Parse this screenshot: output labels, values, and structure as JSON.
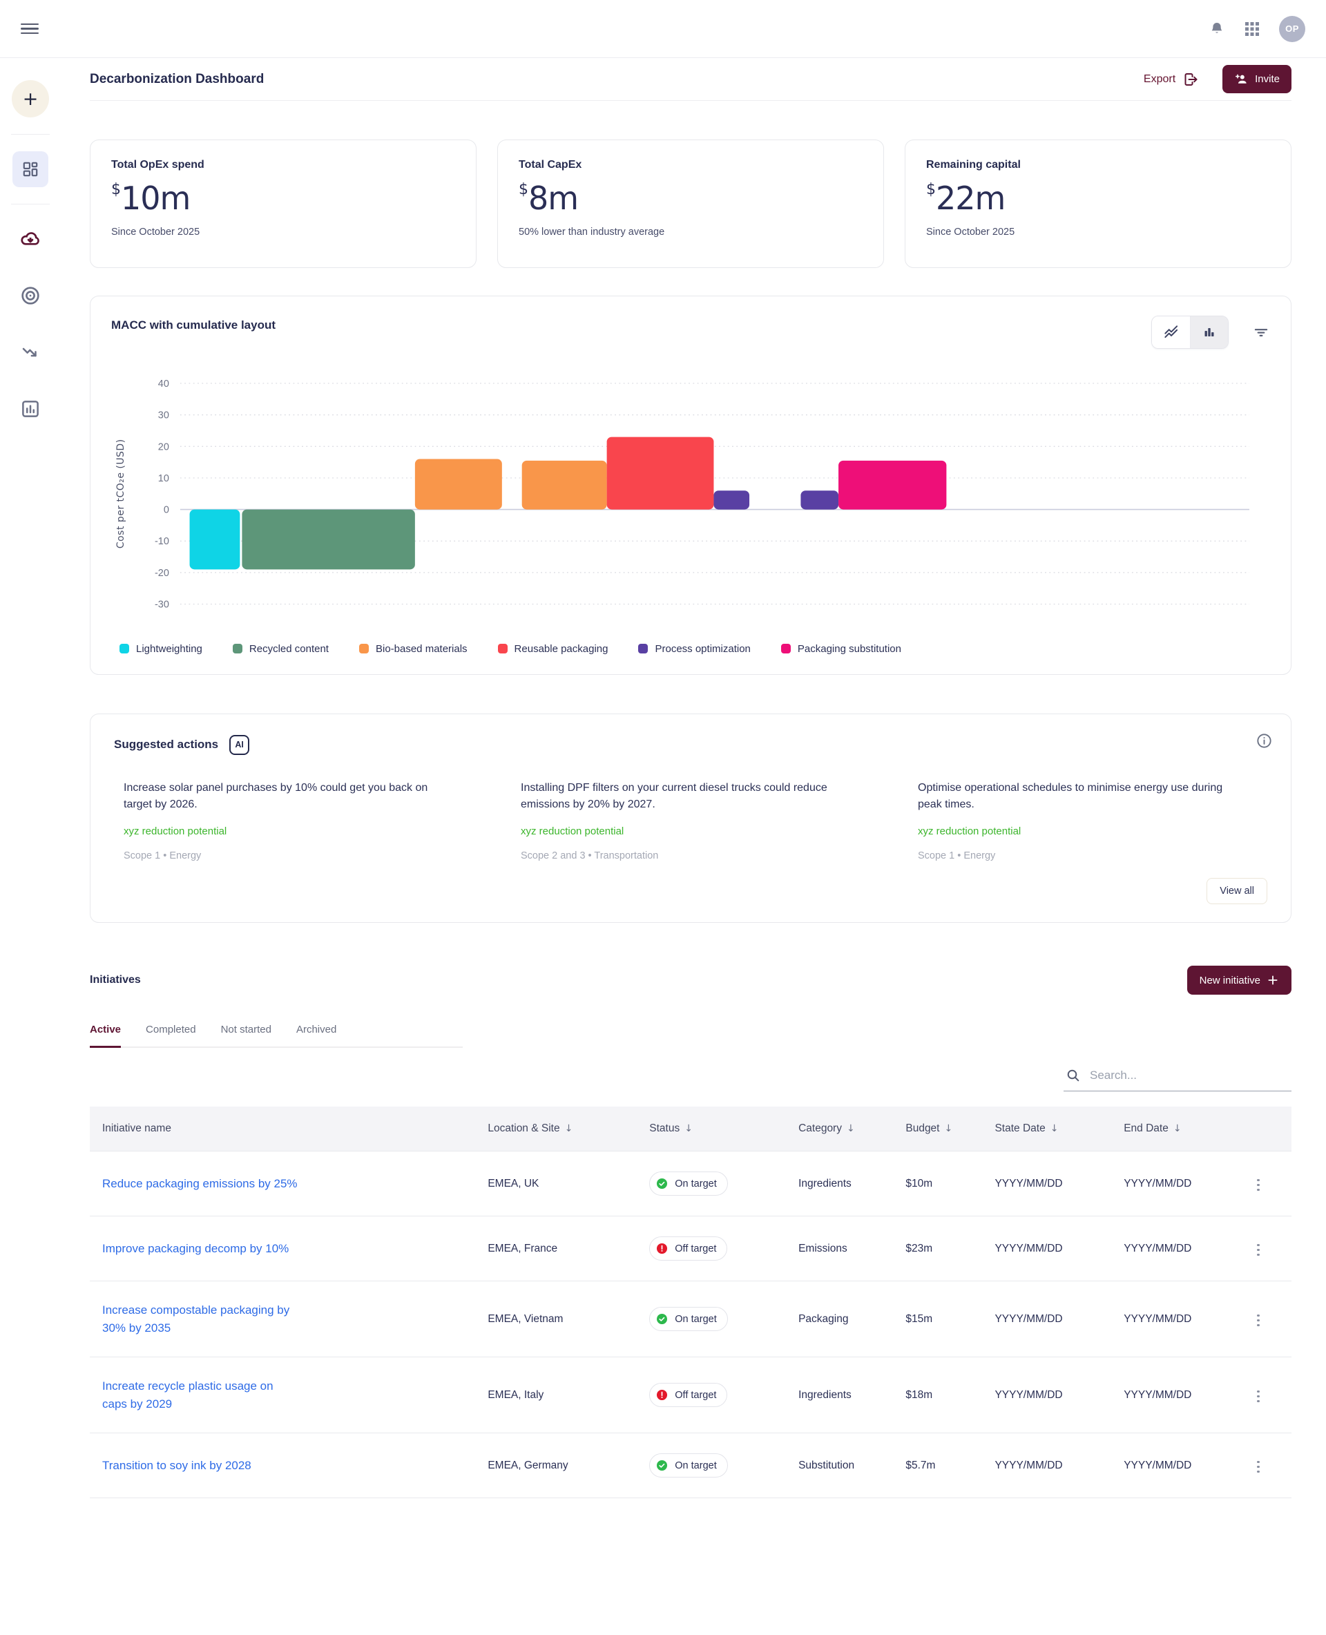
{
  "colors": {
    "brand": "#5e1533",
    "link_blue": "#2e6be6",
    "potential_green": "#3cb52c",
    "status_on": "#2db84c",
    "status_off": "#e3192b",
    "sidebar_selected_bg": "#e9ecfa",
    "table_header_bg": "#f4f4f7"
  },
  "topbar": {
    "icons": [
      "hamburger-menu-icon",
      "bell-icon",
      "app-grid-icon"
    ],
    "avatar_initials": "OP"
  },
  "sidebar": {
    "plus": "+",
    "items": [
      {
        "icon": "dashboard-icon",
        "selected": true
      },
      {
        "icon": "cloud-download-icon",
        "selected": false
      },
      {
        "icon": "target-icon",
        "selected": false
      },
      {
        "icon": "trend-down-icon",
        "selected": false
      },
      {
        "icon": "bar-chart-icon",
        "selected": false
      }
    ]
  },
  "header": {
    "title": "Decarbonization Dashboard",
    "export_label": "Export",
    "invite_label": "Invite"
  },
  "stat_cards": [
    {
      "label": "Total OpEx spend",
      "currency": "$",
      "value": "10m",
      "note": "Since October 2025"
    },
    {
      "label": "Total CapEx",
      "currency": "$",
      "value": "8m",
      "note": "50% lower than industry average"
    },
    {
      "label": "Remaining capital",
      "currency": "$",
      "value": "22m",
      "note": "Since October 2025"
    }
  ],
  "chart_card": {
    "title": "MACC with cumulative layout",
    "toggles": [
      "line-chart-toggle",
      "bar-chart-toggle"
    ],
    "active_toggle": "bar-chart-toggle",
    "chart_data": {
      "type": "bar",
      "variant": "macc-waterfall",
      "title": "MACC with cumulative layout",
      "xlabel": "",
      "ylabel": "Cost per tCO₂e (USD)",
      "yticks": [
        40,
        30,
        20,
        10,
        0,
        -10,
        -20,
        -30
      ],
      "ylim": [
        -37,
        47
      ],
      "x_range": [
        0,
        102
      ],
      "grid": "dashed horizontal, zero baseline solid",
      "legend_position": "bottom",
      "series_colors": {
        "Lightweighting": "#0fd4e6",
        "Recycled content": "#5d9679",
        "Bio-based materials": "#f9964a",
        "Reusable packaging": "#f9454d",
        "Process optimization": "#5940a3",
        "Packaging substitution": "#ee0f78"
      },
      "legend": [
        "Lightweighting",
        "Recycled content",
        "Bio-based materials",
        "Reusable packaging",
        "Process optimization",
        "Packaging substitution"
      ],
      "bars": [
        {
          "series": "Lightweighting",
          "x0": 0.9,
          "x1": 5.7,
          "value": -19
        },
        {
          "series": "Recycled content",
          "x0": 5.9,
          "x1": 22.4,
          "value": -19
        },
        {
          "series": "Bio-based materials",
          "x0": 22.4,
          "x1": 30.7,
          "value": 16
        },
        {
          "series": "Bio-based materials",
          "x0": 32.6,
          "x1": 40.7,
          "value": 15.5
        },
        {
          "series": "Reusable packaging",
          "x0": 40.7,
          "x1": 50.9,
          "value": 23
        },
        {
          "series": "Process optimization",
          "x0": 50.9,
          "x1": 54.3,
          "value": 6
        },
        {
          "series": "Process optimization",
          "x0": 59.2,
          "x1": 62.8,
          "value": 6
        },
        {
          "series": "Packaging substitution",
          "x0": 62.8,
          "x1": 73.1,
          "value": 15.5
        }
      ]
    }
  },
  "suggested": {
    "title": "Suggested actions",
    "ai_badge": "AI",
    "actions": [
      {
        "title": "Increase solar panel purchases by 10% could get you back on target by 2026.",
        "potential": "xyz reduction potential",
        "scope": "Scope 1 • Energy"
      },
      {
        "title": "Installing DPF filters on your current diesel trucks could reduce emissions by 20% by 2027.",
        "potential": "xyz reduction potential",
        "scope": "Scope 2 and 3 • Transportation"
      },
      {
        "title": "Optimise operational schedules to minimise energy use during peak times.",
        "potential": "xyz reduction potential",
        "scope": "Scope 1 • Energy"
      }
    ],
    "view_all": "View all"
  },
  "initiatives": {
    "title": "Initiatives",
    "new_button": "New initiative",
    "tabs": [
      {
        "label": "Active",
        "active": true
      },
      {
        "label": "Completed",
        "active": false
      },
      {
        "label": "Not started",
        "active": false
      },
      {
        "label": "Archived",
        "active": false
      }
    ],
    "search_placeholder": "Search...",
    "sort_icon": "↓",
    "columns": [
      {
        "label": "Initiative name",
        "sortable": false
      },
      {
        "label": "Location & Site",
        "sortable": true
      },
      {
        "label": "Status",
        "sortable": true
      },
      {
        "label": "Category",
        "sortable": true
      },
      {
        "label": "Budget",
        "sortable": true
      },
      {
        "label": "State Date",
        "sortable": true
      },
      {
        "label": "End Date",
        "sortable": true
      }
    ],
    "rows": [
      {
        "name": "Reduce packaging emissions by 25%",
        "location": "EMEA, UK",
        "status": "On target",
        "status_type": "on",
        "category": "Ingredients",
        "budget": "$10m",
        "start_date": "YYYY/MM/DD",
        "end_date": "YYYY/MM/DD"
      },
      {
        "name": "Improve packaging decomp by 10%",
        "location": "EMEA, France",
        "status": "Off target",
        "status_type": "off",
        "category": "Emissions",
        "budget": "$23m",
        "start_date": "YYYY/MM/DD",
        "end_date": "YYYY/MM/DD"
      },
      {
        "name": "Increase compostable packaging by 30% by 2035",
        "location": "EMEA, Vietnam",
        "status": "On target",
        "status_type": "on",
        "category": "Packaging",
        "budget": "$15m",
        "start_date": "YYYY/MM/DD",
        "end_date": "YYYY/MM/DD"
      },
      {
        "name": "Increate recycle plastic usage on caps by 2029",
        "location": "EMEA, Italy",
        "status": "Off target",
        "status_type": "off",
        "category": "Ingredients",
        "budget": "$18m",
        "start_date": "YYYY/MM/DD",
        "end_date": "YYYY/MM/DD"
      },
      {
        "name": "Transition to soy ink by 2028",
        "location": "EMEA, Germany",
        "status": "On target",
        "status_type": "on",
        "category": "Substitution",
        "budget": "$5.7m",
        "start_date": "YYYY/MM/DD",
        "end_date": "YYYY/MM/DD"
      }
    ]
  }
}
